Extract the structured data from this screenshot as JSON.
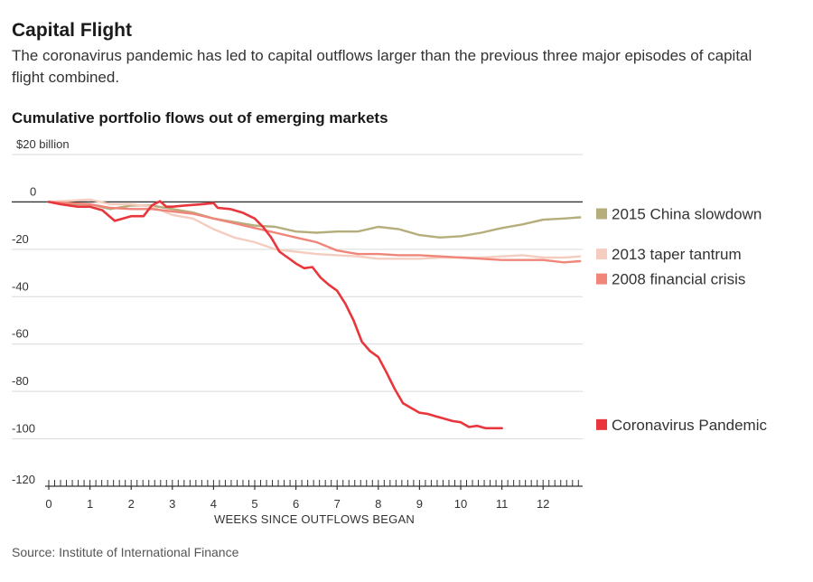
{
  "header": {
    "title": "Capital Flight",
    "subtitle": "The coronavirus pandemic has led to capital outflows larger than the previous three major episodes of capital flight combined.",
    "chart_title": "Cumulative portfolio flows out of emerging markets"
  },
  "footer": {
    "source": "Source: Institute of International Finance"
  },
  "chart_data": {
    "type": "line",
    "title": "Cumulative portfolio flows out of emerging markets",
    "xlabel": "WEEKS SINCE OUTFLOWS BEGAN",
    "ylabel": "",
    "xlim": [
      0,
      12.9
    ],
    "ylim": [
      -120,
      20
    ],
    "x_ticks": [
      0,
      1,
      2,
      3,
      4,
      5,
      6,
      7,
      8,
      9,
      10,
      11,
      12
    ],
    "x_tick_labels": [
      "0",
      "1",
      "2",
      "3",
      "4",
      "5",
      "6",
      "7",
      "8",
      "9",
      "10",
      "11",
      "12"
    ],
    "y_ticks": [
      20,
      0,
      -20,
      -40,
      -60,
      -80,
      -100,
      -120
    ],
    "y_tick_labels": [
      "$20 billion",
      "0",
      "-20",
      "-40",
      "-60",
      "-80",
      "-100",
      "-120"
    ],
    "grid": true,
    "legend_placement": "right, beside line ends",
    "series": [
      {
        "name": "2015 China slowdown",
        "color": "#b5ad7c",
        "points": [
          [
            0,
            0
          ],
          [
            0.5,
            -1
          ],
          [
            1,
            -1
          ],
          [
            1.5,
            -3
          ],
          [
            2,
            -1.5
          ],
          [
            2.5,
            -1.5
          ],
          [
            3,
            -3
          ],
          [
            3.5,
            -4.5
          ],
          [
            4,
            -7
          ],
          [
            4.5,
            -8.5
          ],
          [
            5,
            -10
          ],
          [
            5.5,
            -10.5
          ],
          [
            6,
            -12.5
          ],
          [
            6.5,
            -13
          ],
          [
            7,
            -12.5
          ],
          [
            7.5,
            -12.5
          ],
          [
            8,
            -10.5
          ],
          [
            8.5,
            -11.5
          ],
          [
            9,
            -14
          ],
          [
            9.5,
            -15
          ],
          [
            10,
            -14.5
          ],
          [
            10.5,
            -13
          ],
          [
            11,
            -11
          ],
          [
            11.5,
            -9.5
          ],
          [
            12,
            -7.5
          ],
          [
            12.5,
            -7
          ],
          [
            12.9,
            -6.5
          ]
        ]
      },
      {
        "name": "2013 taper tantrum",
        "color": "#f5cdc0",
        "points": [
          [
            0,
            0
          ],
          [
            0.5,
            0.5
          ],
          [
            1,
            1
          ],
          [
            1.5,
            -1
          ],
          [
            2,
            -1
          ],
          [
            2.5,
            -2
          ],
          [
            3,
            -5.5
          ],
          [
            3.5,
            -7
          ],
          [
            4,
            -11.5
          ],
          [
            4.5,
            -15
          ],
          [
            5,
            -17
          ],
          [
            5.5,
            -20
          ],
          [
            6,
            -21
          ],
          [
            6.5,
            -22
          ],
          [
            7,
            -22.5
          ],
          [
            7.5,
            -23
          ],
          [
            8,
            -24
          ],
          [
            8.5,
            -24
          ],
          [
            9,
            -24
          ],
          [
            9.5,
            -23.5
          ],
          [
            10,
            -23.5
          ],
          [
            10.5,
            -23.5
          ],
          [
            11,
            -23
          ],
          [
            11.5,
            -22.5
          ],
          [
            12,
            -23.5
          ],
          [
            12.5,
            -23.5
          ],
          [
            12.9,
            -23
          ]
        ]
      },
      {
        "name": "2008 financial crisis",
        "color": "#f0857a",
        "points": [
          [
            0,
            0
          ],
          [
            0.5,
            -0.5
          ],
          [
            1,
            -1
          ],
          [
            1.5,
            -2.5
          ],
          [
            2,
            -3
          ],
          [
            2.5,
            -3
          ],
          [
            3,
            -4
          ],
          [
            3.5,
            -5
          ],
          [
            4,
            -7
          ],
          [
            4.5,
            -9
          ],
          [
            5,
            -11
          ],
          [
            5.5,
            -13
          ],
          [
            6,
            -15
          ],
          [
            6.5,
            -17
          ],
          [
            7,
            -20.5
          ],
          [
            7.5,
            -22
          ],
          [
            8,
            -22
          ],
          [
            8.5,
            -22.5
          ],
          [
            9,
            -22.5
          ],
          [
            9.5,
            -23
          ],
          [
            10,
            -23.5
          ],
          [
            10.5,
            -24
          ],
          [
            11,
            -24.5
          ],
          [
            11.5,
            -24.5
          ],
          [
            12,
            -24.5
          ],
          [
            12.5,
            -25.5
          ],
          [
            12.9,
            -25
          ]
        ]
      },
      {
        "name": "Coronavirus Pandemic",
        "color": "#e8363c",
        "points": [
          [
            0,
            0
          ],
          [
            0.3,
            -1
          ],
          [
            0.7,
            -2
          ],
          [
            1,
            -2
          ],
          [
            1.3,
            -3.5
          ],
          [
            1.6,
            -8
          ],
          [
            2,
            -6
          ],
          [
            2.3,
            -6
          ],
          [
            2.5,
            -1.5
          ],
          [
            2.7,
            0.3
          ],
          [
            2.85,
            -2
          ],
          [
            3,
            -2
          ],
          [
            3.3,
            -1.5
          ],
          [
            3.7,
            -1
          ],
          [
            4,
            -0.5
          ],
          [
            4.1,
            -2.5
          ],
          [
            4.4,
            -3
          ],
          [
            4.7,
            -4.5
          ],
          [
            5,
            -7
          ],
          [
            5.2,
            -10.5
          ],
          [
            5.4,
            -15
          ],
          [
            5.6,
            -21
          ],
          [
            5.8,
            -23.5
          ],
          [
            6,
            -26
          ],
          [
            6.2,
            -28
          ],
          [
            6.4,
            -27.5
          ],
          [
            6.6,
            -32
          ],
          [
            6.8,
            -35
          ],
          [
            7,
            -37.5
          ],
          [
            7.2,
            -43
          ],
          [
            7.4,
            -50
          ],
          [
            7.6,
            -59
          ],
          [
            7.8,
            -63
          ],
          [
            8,
            -65.5
          ],
          [
            8.2,
            -72
          ],
          [
            8.4,
            -79
          ],
          [
            8.6,
            -85
          ],
          [
            8.8,
            -87
          ],
          [
            9,
            -89
          ],
          [
            9.2,
            -89.5
          ],
          [
            9.4,
            -90.5
          ],
          [
            9.6,
            -91.5
          ],
          [
            9.8,
            -92.5
          ],
          [
            10,
            -93
          ],
          [
            10.2,
            -95
          ],
          [
            10.4,
            -94.5
          ],
          [
            10.6,
            -95.5
          ],
          [
            10.8,
            -95.5
          ],
          [
            11,
            -95.5
          ]
        ]
      }
    ],
    "legend": [
      {
        "label": "2015 China slowdown",
        "color": "#b5ad7c",
        "anchor_y": -5
      },
      {
        "label": "2013 taper tantrum",
        "color": "#f5cdc0",
        "anchor_y": -22
      },
      {
        "label": "2008 financial crisis",
        "color": "#f0857a",
        "anchor_y": -32.5
      },
      {
        "label": "Coronavirus Pandemic",
        "color": "#e8363c",
        "anchor_y": -94
      }
    ],
    "colors": {
      "grid": "#d9d9d9",
      "zero_line": "#333333",
      "axis": "#333333"
    }
  }
}
